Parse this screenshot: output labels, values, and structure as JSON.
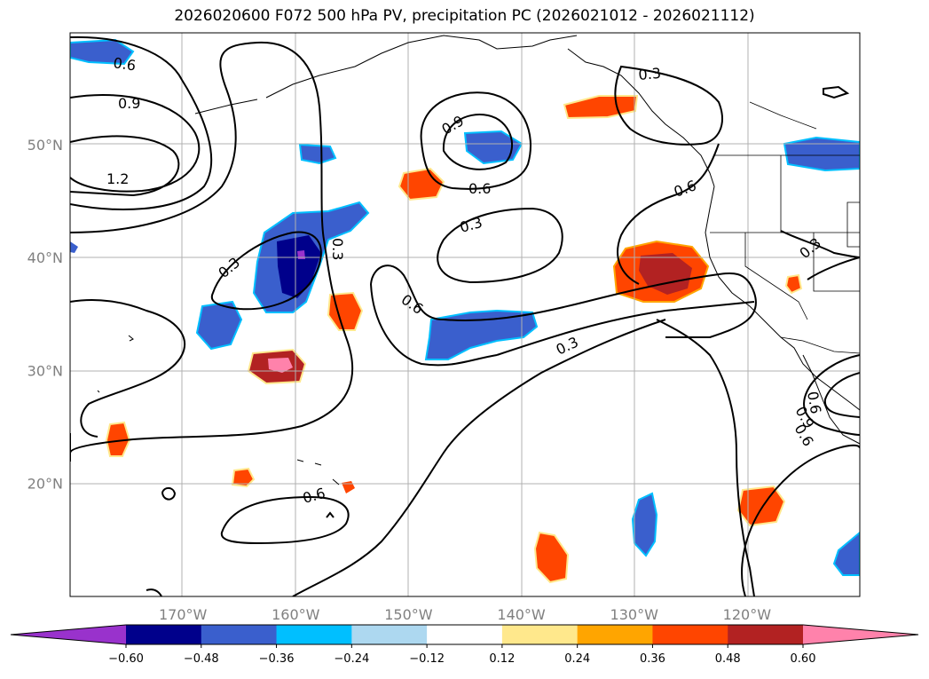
{
  "title": "2026020600 F072 500 hPa PV, precipitation PC (2026021012 - 2026021112)",
  "lat_ticks": [
    {
      "value": 50,
      "label": "50°N"
    },
    {
      "value": 40,
      "label": "40°N"
    },
    {
      "value": 30,
      "label": "30°N"
    },
    {
      "value": 20,
      "label": "20°N"
    }
  ],
  "lon_ticks": [
    {
      "value": -170,
      "label": "170°W"
    },
    {
      "value": -160,
      "label": "160°W"
    },
    {
      "value": -150,
      "label": "150°W"
    },
    {
      "value": -140,
      "label": "140°W"
    },
    {
      "value": -130,
      "label": "130°W"
    },
    {
      "value": -120,
      "label": "120°W"
    }
  ],
  "colorbar": {
    "levels": [
      "−0.60",
      "−0.48",
      "−0.36",
      "−0.24",
      "−0.12",
      "0.12",
      "0.24",
      "0.36",
      "0.48",
      "0.60"
    ],
    "colors": [
      "#9932cc",
      "#00008b",
      "#3a5fcd",
      "#00bfff",
      "#add8f0",
      "#ffffff",
      "#ffe88c",
      "#ffa500",
      "#ff4500",
      "#b22222",
      "#ff82ab"
    ]
  },
  "contour_labels": [
    "0.6",
    "0.9",
    "1.2",
    "0.3",
    "0.3",
    "0.9",
    "0.6",
    "0.3",
    "0.6",
    "0.3",
    "0.6",
    "0.3",
    "0.6",
    "0.3",
    "0.6",
    "0.9",
    "0.6"
  ]
}
